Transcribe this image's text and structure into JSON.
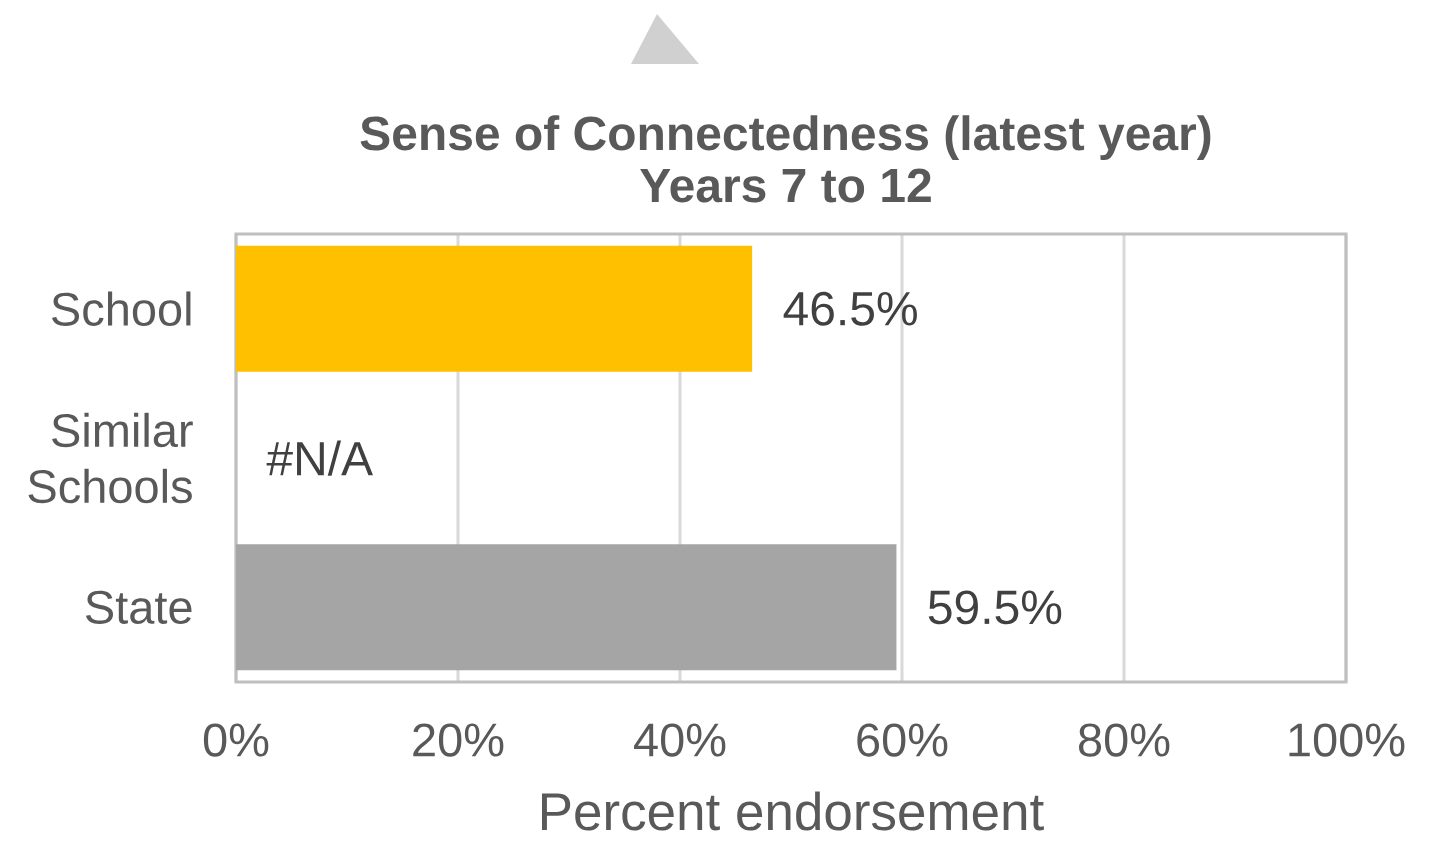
{
  "chart_data": {
    "type": "bar",
    "orientation": "horizontal",
    "title": "Sense of Connectedness (latest year)",
    "subtitle": "Years 7 to 12",
    "xlabel": "Percent endorsement",
    "categories": [
      "School",
      "Similar Schools",
      "State"
    ],
    "values": [
      46.5,
      null,
      59.5
    ],
    "colors": [
      "#ffc000",
      null,
      "#a5a5a5"
    ],
    "value_labels": [
      "46.5%",
      "#N/A",
      "59.5%"
    ],
    "xlim": [
      0,
      100
    ],
    "xticks": [
      {
        "value": 0,
        "label": "0%"
      },
      {
        "value": 20,
        "label": "20%"
      },
      {
        "value": 40,
        "label": "40%"
      },
      {
        "value": 60,
        "label": "60%"
      },
      {
        "value": 80,
        "label": "80%"
      },
      {
        "value": 100,
        "label": "100%"
      }
    ],
    "grid": "x"
  }
}
